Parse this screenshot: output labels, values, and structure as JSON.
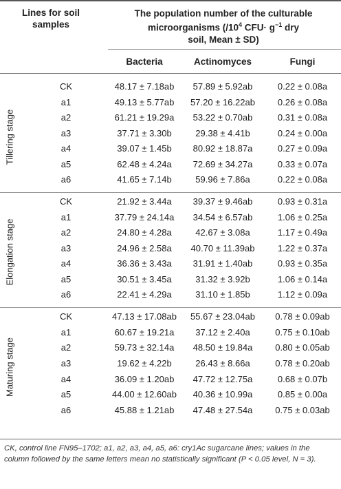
{
  "header": {
    "lines_label_1": "Lines for soil",
    "lines_label_2": "samples",
    "group_line_1": "The population number of the culturable",
    "group_line_2": "microorganisms (/10",
    "group_sup_4": "4",
    "group_line_2b": " CFU· g",
    "group_sup_neg1": "−1",
    "group_line_2c": " dry",
    "group_line_3": "soil, Mean ± SD)",
    "col_bacteria": "Bacteria",
    "col_actinomyces": "Actinomyces",
    "col_fungi": "Fungi"
  },
  "stages": [
    {
      "name": "Tillering stage",
      "rows": [
        {
          "line": "CK",
          "bacteria": "48.17 ± 7.18ab",
          "actinomyces": "57.89 ± 5.92ab",
          "fungi": "0.22 ± 0.08a"
        },
        {
          "line": "a1",
          "bacteria": "49.13 ± 5.77ab",
          "actinomyces": "57.20 ± 16.22ab",
          "fungi": "0.26 ± 0.08a"
        },
        {
          "line": "a2",
          "bacteria": "61.21 ± 19.29a",
          "actinomyces": "53.22 ± 0.70ab",
          "fungi": "0.31 ± 0.08a"
        },
        {
          "line": "a3",
          "bacteria": "37.71 ± 3.30b",
          "actinomyces": "29.38 ± 4.41b",
          "fungi": "0.24 ± 0.00a"
        },
        {
          "line": "a4",
          "bacteria": "39.07 ± 1.45b",
          "actinomyces": "80.92 ± 18.87a",
          "fungi": "0.27 ± 0.09a"
        },
        {
          "line": "a5",
          "bacteria": "62.48 ± 4.24a",
          "actinomyces": "72.69 ± 34.27a",
          "fungi": "0.33 ± 0.07a"
        },
        {
          "line": "a6",
          "bacteria": "41.65 ± 7.14b",
          "actinomyces": "59.96 ± 7.86a",
          "fungi": "0.22 ± 0.08a"
        }
      ]
    },
    {
      "name": "Elongation stage",
      "rows": [
        {
          "line": "CK",
          "bacteria": "21.92 ± 3.44a",
          "actinomyces": "39.37 ± 9.46ab",
          "fungi": "0.93 ± 0.31a"
        },
        {
          "line": "a1",
          "bacteria": "37.79 ± 24.14a",
          "actinomyces": "34.54 ± 6.57ab",
          "fungi": "1.06 ± 0.25a"
        },
        {
          "line": "a2",
          "bacteria": "24.80 ± 4.28a",
          "actinomyces": "42.67 ± 3.08a",
          "fungi": "1.17 ± 0.49a"
        },
        {
          "line": "a3",
          "bacteria": "24.96 ± 2.58a",
          "actinomyces": "40.70 ± 11.39ab",
          "fungi": "1.22 ± 0.37a"
        },
        {
          "line": "a4",
          "bacteria": "36.36 ± 3.43a",
          "actinomyces": "31.91 ± 1.40ab",
          "fungi": "0.93 ± 0.35a"
        },
        {
          "line": "a5",
          "bacteria": "30.51 ± 3.45a",
          "actinomyces": "31.32 ± 3.92b",
          "fungi": "1.06 ± 0.14a"
        },
        {
          "line": "a6",
          "bacteria": "22.41 ± 4.29a",
          "actinomyces": "31.10 ± 1.85b",
          "fungi": "1.12 ± 0.09a"
        }
      ]
    },
    {
      "name": "Maturing stage",
      "rows": [
        {
          "line": "CK",
          "bacteria": "47.13 ± 17.08ab",
          "actinomyces": "55.67 ± 23.04ab",
          "fungi": "0.78 ± 0.09ab"
        },
        {
          "line": "a1",
          "bacteria": "60.67 ± 19.21a",
          "actinomyces": "37.12 ± 2.40a",
          "fungi": "0.75 ± 0.10ab"
        },
        {
          "line": "a2",
          "bacteria": "59.73 ± 32.14a",
          "actinomyces": "48.50 ± 19.84a",
          "fungi": "0.80 ± 0.05ab"
        },
        {
          "line": "a3",
          "bacteria": "19.62 ± 4.22b",
          "actinomyces": "26.43 ± 8.66a",
          "fungi": "0.78 ± 0.20ab"
        },
        {
          "line": "a4",
          "bacteria": "36.09 ± 1.20ab",
          "actinomyces": "47.72 ± 12.75a",
          "fungi": "0.68 ± 0.07b"
        },
        {
          "line": "a5",
          "bacteria": "44.00 ± 12.60ab",
          "actinomyces": "40.36 ± 10.99a",
          "fungi": "0.85 ± 0.00a"
        },
        {
          "line": "a6",
          "bacteria": "45.88 ± 1.21ab",
          "actinomyces": "47.48 ± 27.54a",
          "fungi": "0.75 ± 0.03ab"
        }
      ]
    }
  ],
  "footnote": {
    "part1": "CK, control line FN95–1702; a1, a2, a3, a4, a5, a6: cry1Ac sugarcane lines; values in the column followed by the same letters mean no statistically significant (",
    "p_var": "P",
    "part2": " < 0.05 level, ",
    "n_var": "N",
    "part3": " = 3)."
  }
}
